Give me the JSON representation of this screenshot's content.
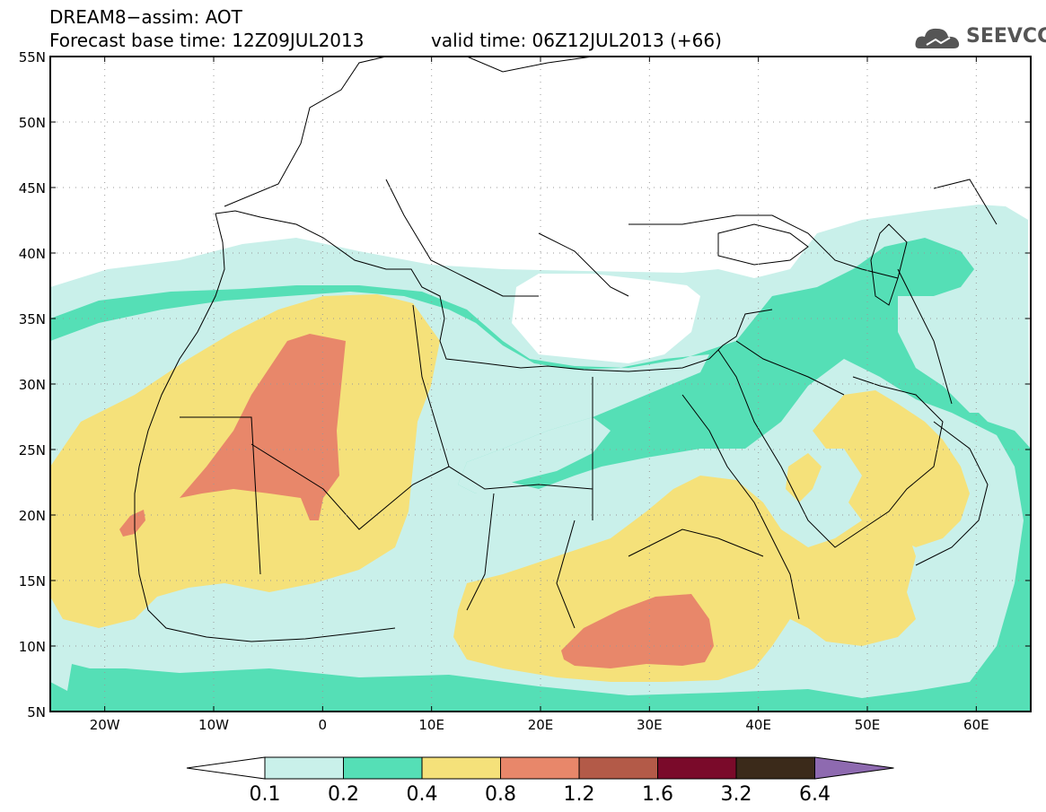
{
  "title": {
    "line1": "DREAM8−assim: AOT",
    "base_time": "Forecast base time: 12Z09JUL2013",
    "valid_time": "valid time: 06Z12JUL2013 (+66)"
  },
  "logo": {
    "text": "SEEVCCC",
    "icon": "cloud-icon"
  },
  "map": {
    "lat_ticks": [
      "55N",
      "50N",
      "45N",
      "40N",
      "35N",
      "30N",
      "25N",
      "20N",
      "15N",
      "10N",
      "5N"
    ],
    "lon_ticks": [
      "20W",
      "10W",
      "0",
      "10E",
      "20E",
      "30E",
      "40E",
      "50E",
      "60E"
    ],
    "lon_range": [
      -25,
      65
    ],
    "lat_range": [
      5,
      55
    ]
  },
  "legend": {
    "labels": [
      "0.1",
      "0.2",
      "0.4",
      "0.8",
      "1.2",
      "1.6",
      "3.2",
      "6.4"
    ],
    "colors": [
      "#c9f0ea",
      "#55dfb6",
      "#f5e17a",
      "#e8876a",
      "#b35a48",
      "#7a0a2a",
      "#3b2a1a",
      "#8e6ab0"
    ]
  }
}
